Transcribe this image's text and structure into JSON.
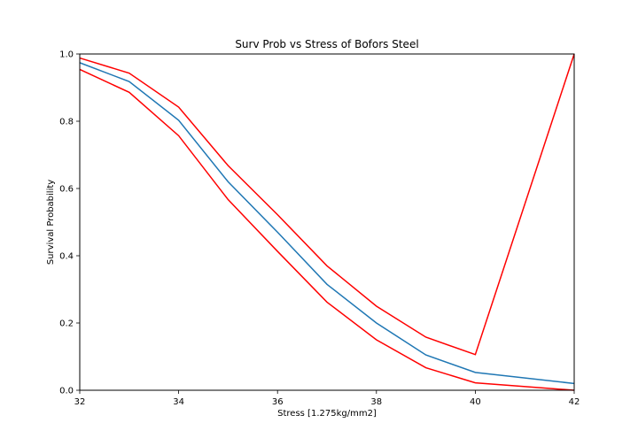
{
  "chart_data": {
    "type": "line",
    "title": "Surv Prob vs Stress of Bofors Steel",
    "xlabel": "Stress [1.275kg/mm2]",
    "ylabel": "Survival Probability",
    "xlim": [
      32,
      42
    ],
    "ylim": [
      0,
      1.0
    ],
    "xticks": [
      32,
      34,
      36,
      38,
      40,
      42
    ],
    "xtick_labels": [
      "32",
      "34",
      "36",
      "38",
      "40",
      "42"
    ],
    "yticks": [
      0,
      0.2,
      0.4,
      0.6,
      0.8,
      1.0
    ],
    "ytick_labels": [
      "0.0",
      "0.2",
      "0.4",
      "0.6",
      "0.8",
      "1.0"
    ],
    "grid": false,
    "series": [
      {
        "color": "#1f77b4",
        "x": [
          32,
          33,
          34,
          35,
          36,
          37,
          38,
          39,
          40,
          42
        ],
        "y": [
          0.974,
          0.918,
          0.803,
          0.62,
          0.47,
          0.315,
          0.2,
          0.105,
          0.053,
          0.02
        ]
      },
      {
        "color": "#ff0000",
        "x": [
          32,
          33,
          34,
          35,
          36,
          37,
          38,
          39,
          40,
          42
        ],
        "y": [
          0.988,
          0.943,
          0.842,
          0.668,
          0.522,
          0.37,
          0.25,
          0.158,
          0.106,
          1.0
        ]
      },
      {
        "color": "#ff0000",
        "x": [
          32,
          33,
          34,
          35,
          36,
          37,
          38,
          39,
          40,
          42
        ],
        "y": [
          0.954,
          0.886,
          0.757,
          0.567,
          0.413,
          0.262,
          0.15,
          0.067,
          0.022,
          0.0
        ]
      }
    ]
  }
}
